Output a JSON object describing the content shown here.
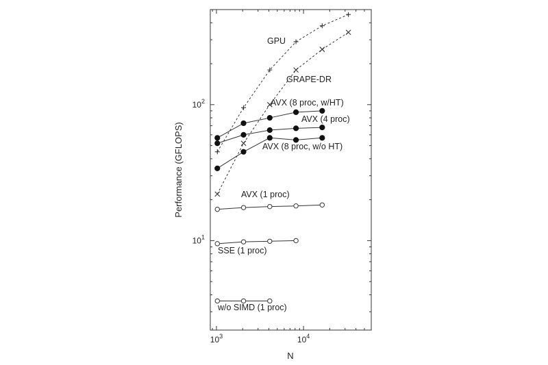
{
  "chart_data": {
    "type": "line",
    "xlabel": "N",
    "ylabel": "Performance (GFLOPS)",
    "xscale": "log",
    "yscale": "log",
    "xlim": [
      850,
      60000
    ],
    "ylim": [
      2.2,
      500
    ],
    "x_tick_labels": [
      {
        "value": 1000,
        "mantissa": "10",
        "exp": "3"
      },
      {
        "value": 10000,
        "mantissa": "10",
        "exp": "4"
      }
    ],
    "y_tick_labels": [
      {
        "value": 10,
        "mantissa": "10",
        "exp": "1"
      },
      {
        "value": 100,
        "mantissa": "10",
        "exp": "2"
      }
    ],
    "grid": false,
    "legend": "none",
    "series": [
      {
        "name": "GPU",
        "marker": "plus",
        "dashed": true,
        "x": [
          1024,
          2048,
          4096,
          8192,
          16384,
          32768
        ],
        "y": [
          45,
          95,
          180,
          290,
          380,
          460
        ]
      },
      {
        "name": "GRAPE-DR",
        "marker": "x",
        "dashed": true,
        "x": [
          1024,
          2048,
          4096,
          8192,
          16384,
          32768
        ],
        "y": [
          22,
          52,
          100,
          180,
          255,
          340
        ]
      },
      {
        "name": "AVX (8 proc, w/HT)",
        "marker": "filled-circle",
        "dashed": false,
        "x": [
          1024,
          2048,
          4096,
          8192,
          16384
        ],
        "y": [
          57,
          73,
          80,
          88,
          90
        ]
      },
      {
        "name": "AVX (4 proc)",
        "marker": "filled-circle",
        "dashed": false,
        "x": [
          1024,
          2048,
          4096,
          8192,
          16384
        ],
        "y": [
          52,
          60,
          65,
          67,
          68
        ]
      },
      {
        "name": "AVX (8 proc, w/o HT)",
        "marker": "filled-circle",
        "dashed": false,
        "x": [
          1024,
          2048,
          4096,
          8192,
          16384
        ],
        "y": [
          34,
          45,
          57,
          55,
          57
        ]
      },
      {
        "name": "AVX (1 proc)",
        "marker": "open-circle",
        "dashed": false,
        "x": [
          1024,
          2048,
          4096,
          8192,
          16384
        ],
        "y": [
          17,
          17.5,
          17.8,
          18,
          18.3
        ]
      },
      {
        "name": "SSE (1 proc)",
        "marker": "open-circle",
        "dashed": false,
        "x": [
          1024,
          2048,
          4096,
          8192
        ],
        "y": [
          9.5,
          9.8,
          9.9,
          10
        ]
      },
      {
        "name": "w/o SIMD (1 proc)",
        "marker": "open-circle",
        "dashed": false,
        "x": [
          1024,
          2048,
          4096
        ],
        "y": [
          3.6,
          3.6,
          3.6
        ]
      }
    ]
  }
}
